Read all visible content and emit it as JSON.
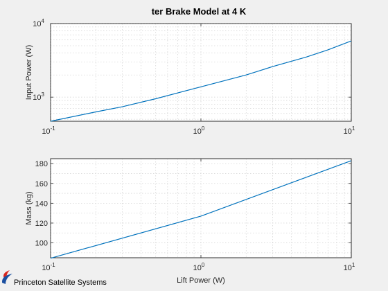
{
  "figure": {
    "title": "ter Brake Model at 4 K",
    "brand": "Princeton Satellite Systems",
    "brand_colors": {
      "red": "#d7261e",
      "blue": "#1a4fa0"
    }
  },
  "chart_data": [
    {
      "type": "line",
      "xscale": "log",
      "yscale": "log",
      "xlim": [
        0.1,
        10
      ],
      "ylim": [
        470,
        10000
      ],
      "x": [
        0.1,
        0.2,
        0.3,
        0.5,
        1,
        2,
        3,
        5,
        7,
        10
      ],
      "series": [
        {
          "values": [
            470,
            630,
            740,
            950,
            1380,
            2000,
            2600,
            3500,
            4400,
            5800
          ]
        }
      ],
      "ylabel": "Input Power (W)",
      "xlabel": "",
      "xticks": [
        {
          "base": "10",
          "exp": "-1",
          "v": 0.1
        },
        {
          "base": "10",
          "exp": "0",
          "v": 1
        },
        {
          "base": "10",
          "exp": "1",
          "v": 10
        }
      ],
      "yticks": [
        {
          "base": "10",
          "exp": "3",
          "v": 1000
        },
        {
          "base": "10",
          "exp": "4",
          "v": 10000
        }
      ],
      "grid": true,
      "color": "#0072bd"
    },
    {
      "type": "line",
      "xscale": "log",
      "yscale": "linear",
      "xlim": [
        0.1,
        10
      ],
      "ylim": [
        85,
        185
      ],
      "x": [
        0.1,
        1,
        10
      ],
      "series": [
        {
          "values": [
            84.5,
            127,
            183
          ]
        }
      ],
      "ylabel": "Mass (kg)",
      "xlabel": "Lift Power (W)",
      "xticks": [
        {
          "base": "10",
          "exp": "-1",
          "v": 0.1
        },
        {
          "base": "10",
          "exp": "0",
          "v": 1
        },
        {
          "base": "10",
          "exp": "1",
          "v": 10
        }
      ],
      "yticks": [
        {
          "label": "100",
          "v": 100
        },
        {
          "label": "120",
          "v": 120
        },
        {
          "label": "140",
          "v": 140
        },
        {
          "label": "160",
          "v": 160
        },
        {
          "label": "180",
          "v": 180
        }
      ],
      "grid": true,
      "color": "#0072bd"
    }
  ]
}
